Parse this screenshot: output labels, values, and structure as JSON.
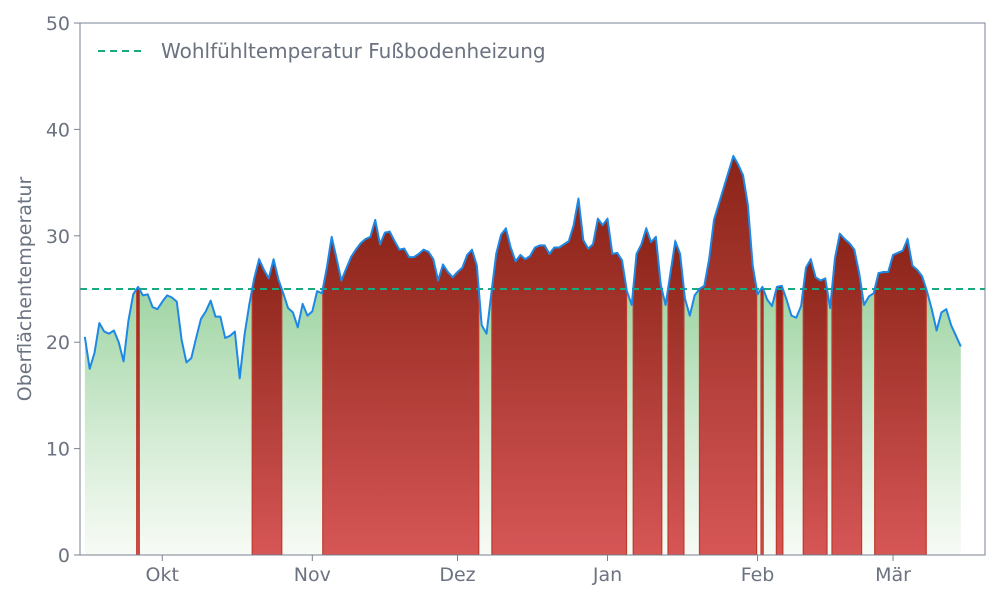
{
  "chart_data": {
    "type": "area",
    "title": "",
    "xlabel": "",
    "ylabel": "Oberflächentemperatur",
    "ylim": [
      0,
      50
    ],
    "yticks": [
      0,
      10,
      20,
      30,
      40,
      50
    ],
    "xlim": [
      "2024-09-14",
      "2025-03-20"
    ],
    "xticks": [
      {
        "label": "Okt",
        "date": "2024-10-01"
      },
      {
        "label": "Nov",
        "date": "2024-11-01"
      },
      {
        "label": "Dez",
        "date": "2024-12-01"
      },
      {
        "label": "Jan",
        "date": "2025-01-01"
      },
      {
        "label": "Feb",
        "date": "2025-02-01"
      },
      {
        "label": "Mär",
        "date": "2025-03-01"
      }
    ],
    "grid": false,
    "legend_placement": "top-left",
    "reference_line": {
      "label": "Wohlfühltemperatur Fußbodenheizung",
      "value": 25,
      "color": "#1aaa80"
    },
    "colors": {
      "line": "#1e88e5",
      "above_fill": "#b03a2e",
      "below_fill": "#6dbf72",
      "axes": "#6b7280"
    },
    "series": [
      {
        "start": "2024-09-15",
        "step_days": 1,
        "values": [
          20.5,
          17.5,
          19,
          21.8,
          21,
          20.8,
          21.1,
          20,
          18.2,
          22,
          24.5,
          25.2,
          24.4,
          24.5,
          23.3,
          23.1,
          23.8,
          24.4,
          24.2,
          23.8,
          20.2,
          18.1,
          18.5,
          20.4,
          22.2,
          22.9,
          23.9,
          22.4,
          22.4,
          20.4,
          20.6,
          21,
          16.6,
          20.7,
          23.6,
          26,
          27.8,
          26.8,
          26,
          27.8,
          25.9,
          24.6,
          23.2,
          22.8,
          21.4,
          23.6,
          22.5,
          22.9,
          24.8,
          24.6,
          27,
          29.9,
          27.9,
          25.8,
          26.9,
          28,
          28.7,
          29.3,
          29.7,
          29.9,
          31.5,
          29.2,
          30.3,
          30.4,
          29.5,
          28.7,
          28.8,
          28,
          28,
          28.3,
          28.7,
          28.5,
          27.8,
          25.8,
          27.3,
          26.6,
          26.1,
          26.6,
          27,
          28.2,
          28.7,
          27.2,
          21.6,
          20.8,
          24.6,
          28.3,
          30.1,
          30.7,
          28.9,
          27.6,
          28.2,
          27.8,
          28.1,
          28.9,
          29.1,
          29.1,
          28.3,
          28.9,
          28.9,
          29.2,
          29.5,
          31,
          33.5,
          29.6,
          28.8,
          29.2,
          31.6,
          31,
          31.6,
          28.3,
          28.4,
          27.7,
          24.8,
          23.5,
          28.3,
          29.2,
          30.7,
          29.4,
          29.9,
          25.4,
          23.5,
          26.5,
          29.5,
          28.3,
          24.1,
          22.5,
          24.4,
          25,
          25.3,
          27.8,
          31.5,
          33,
          34.5,
          36,
          37.5,
          36.7,
          35.7,
          32.9,
          27.2,
          24.5,
          25.2,
          24,
          23.4,
          25.2,
          25.3,
          24,
          22.5,
          22.3,
          23.4,
          27,
          27.8,
          26.1,
          25.8,
          26,
          23.2,
          27.9,
          30.2,
          29.7,
          29.3,
          28.7,
          26.5,
          23.5,
          24.3,
          24.6,
          26.5,
          26.6,
          26.6,
          28.2,
          28.4,
          28.6,
          29.7,
          27.2,
          26.8,
          26.2,
          24.8,
          23.1,
          21.1,
          22.8,
          23.1,
          21.6,
          20.6,
          19.6
        ]
      }
    ]
  }
}
